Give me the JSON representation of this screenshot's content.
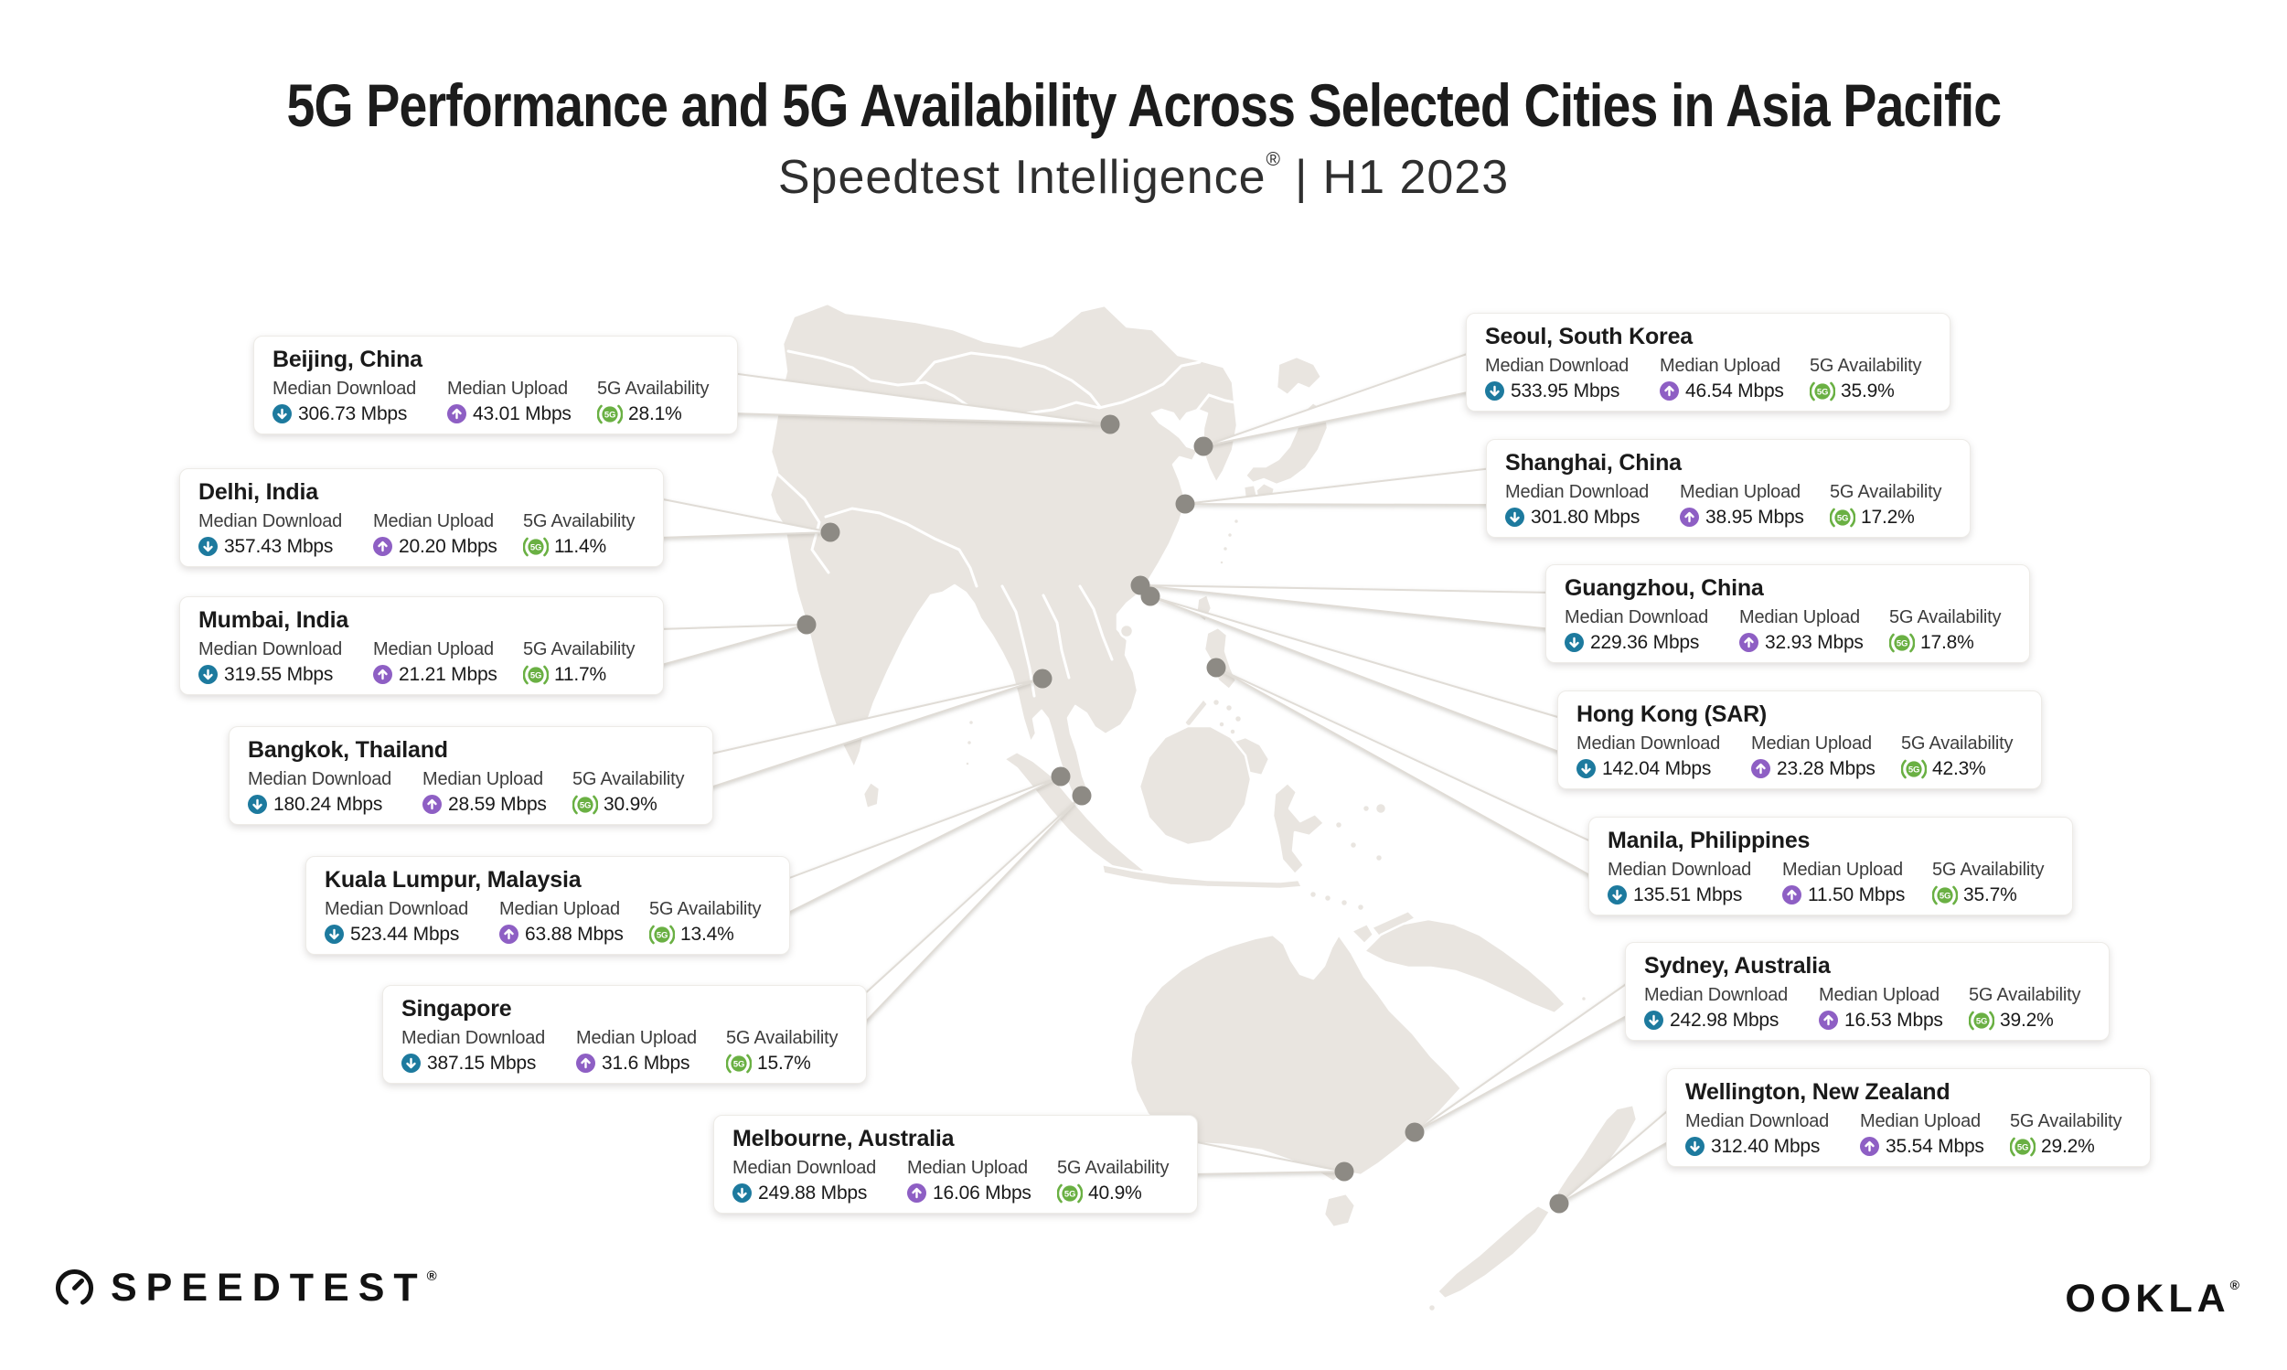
{
  "title": "5G Performance and 5G Availability Across Selected Cities in Asia Pacific",
  "subtitle": {
    "brand": "Speedtest Intelligence",
    "reg": "®",
    "sep": "|",
    "period": "H1 2023"
  },
  "labels": {
    "download": "Median Download",
    "upload": "Median Upload",
    "availability": "5G Availability"
  },
  "footer": {
    "speedtest": "SPEEDTEST",
    "speedtest_reg": "®",
    "ookla": "OOKLA",
    "ookla_reg": "®"
  },
  "colors": {
    "download_icon": "#1d7a9e",
    "upload_icon": "#8e5fc4",
    "availability_icon": "#6ab043",
    "dot": "#8d8a84",
    "land": "#e9e5e0",
    "wedge_stroke": "#e0dcd6",
    "text": "#1a1a1a"
  },
  "cities": [
    {
      "name": "Beijing, China",
      "download": "306.73 Mbps",
      "upload": "43.01 Mbps",
      "availability": "28.1%",
      "card": [
        277,
        367
      ],
      "dot": [
        1214,
        464
      ],
      "anchors": [
        [
          800,
          408
        ],
        [
          800,
          452
        ]
      ]
    },
    {
      "name": "Delhi, India",
      "download": "357.43 Mbps",
      "upload": "20.20 Mbps",
      "availability": "11.4%",
      "card": [
        196,
        512
      ],
      "dot": [
        908,
        582
      ],
      "anchors": [
        [
          720,
          545
        ],
        [
          720,
          588
        ]
      ]
    },
    {
      "name": "Mumbai, India",
      "download": "319.55 Mbps",
      "upload": "21.21 Mbps",
      "availability": "11.7%",
      "card": [
        196,
        652
      ],
      "dot": [
        882,
        683
      ],
      "anchors": [
        [
          720,
          688
        ],
        [
          720,
          728
        ]
      ]
    },
    {
      "name": "Bangkok, Thailand",
      "download": "180.24 Mbps",
      "upload": "28.59 Mbps",
      "availability": "30.9%",
      "card": [
        250,
        794
      ],
      "dot": [
        1140,
        742
      ],
      "anchors": [
        [
          774,
          825
        ],
        [
          774,
          862
        ]
      ]
    },
    {
      "name": "Kuala Lumpur, Malaysia",
      "download": "523.44 Mbps",
      "upload": "63.88 Mbps",
      "availability": "13.4%",
      "card": [
        334,
        936
      ],
      "dot": [
        1160,
        849
      ],
      "anchors": [
        [
          858,
          962
        ],
        [
          858,
          1000
        ]
      ]
    },
    {
      "name": "Singapore",
      "download": "387.15 Mbps",
      "upload": "31.6 Mbps",
      "availability": "15.7%",
      "card": [
        418,
        1077
      ],
      "dot": [
        1183,
        870
      ],
      "anchors": [
        [
          942,
          1090
        ],
        [
          942,
          1122
        ]
      ]
    },
    {
      "name": "Melbourne, Australia",
      "download": "249.88 Mbps",
      "upload": "16.06 Mbps",
      "availability": "40.9%",
      "card": [
        780,
        1219
      ],
      "dot": [
        1470,
        1281
      ],
      "anchors": [
        [
          1304,
          1248
        ],
        [
          1304,
          1284
        ]
      ]
    },
    {
      "name": "Seoul, South Korea",
      "download": "533.95 Mbps",
      "upload": "46.54 Mbps",
      "availability": "35.9%",
      "card": [
        1603,
        342
      ],
      "dot": [
        1316,
        488
      ],
      "anchors": [
        [
          1610,
          385
        ],
        [
          1610,
          428
        ]
      ]
    },
    {
      "name": "Shanghai, China",
      "download": "301.80 Mbps",
      "upload": "38.95 Mbps",
      "availability": "17.2%",
      "card": [
        1625,
        480
      ],
      "dot": [
        1296,
        551
      ],
      "anchors": [
        [
          1632,
          512
        ],
        [
          1632,
          552
        ]
      ]
    },
    {
      "name": "Guangzhou, China",
      "download": "229.36 Mbps",
      "upload": "32.93 Mbps",
      "availability": "17.8%",
      "card": [
        1690,
        617
      ],
      "dot": [
        1247,
        640
      ],
      "anchors": [
        [
          1697,
          648
        ],
        [
          1697,
          688
        ]
      ]
    },
    {
      "name": "Hong Kong (SAR)",
      "download": "142.04 Mbps",
      "upload": "23.28 Mbps",
      "availability": "42.3%",
      "card": [
        1703,
        755
      ],
      "dot": [
        1258,
        652
      ],
      "anchors": [
        [
          1710,
          786
        ],
        [
          1710,
          824
        ]
      ]
    },
    {
      "name": "Manila, Philippines",
      "download": "135.51 Mbps",
      "upload": "11.50 Mbps",
      "availability": "35.7%",
      "card": [
        1737,
        893
      ],
      "dot": [
        1330,
        730
      ],
      "anchors": [
        [
          1744,
          922
        ],
        [
          1744,
          960
        ]
      ]
    },
    {
      "name": "Sydney, Australia",
      "download": "242.98 Mbps",
      "upload": "16.53 Mbps",
      "availability": "39.2%",
      "card": [
        1777,
        1030
      ],
      "dot": [
        1547,
        1238
      ],
      "anchors": [
        [
          1784,
          1072
        ],
        [
          1784,
          1108
        ]
      ]
    },
    {
      "name": "Wellington, New Zealand",
      "download": "312.40 Mbps",
      "upload": "35.54 Mbps",
      "availability": "29.2%",
      "card": [
        1822,
        1168
      ],
      "dot": [
        1705,
        1316
      ],
      "anchors": [
        [
          1829,
          1210
        ],
        [
          1829,
          1246
        ]
      ]
    }
  ]
}
